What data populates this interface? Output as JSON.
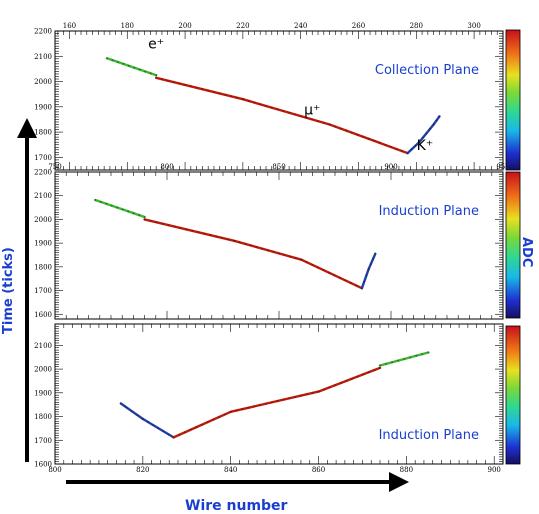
{
  "chart_data": [
    {
      "type": "line",
      "panel": "top",
      "plane_label": "Collection Plane",
      "x_ticks": [
        160,
        180,
        200,
        220,
        240,
        260,
        280,
        300
      ],
      "xlim": [
        155,
        310
      ],
      "y_ticks": [
        1700,
        1800,
        1900,
        2000,
        2100,
        2200
      ],
      "ylim": [
        1650,
        2200
      ],
      "tick_side": "top",
      "annotations": [
        {
          "text": "e⁺",
          "x": 190,
          "y": 2130
        },
        {
          "text": "μ⁺",
          "x": 244,
          "y": 1870
        },
        {
          "text": "K⁺",
          "x": 283,
          "y": 1730
        }
      ],
      "series": [
        {
          "segment": "e+",
          "color": "green",
          "x": [
            173,
            190
          ],
          "y": [
            2092,
            2025
          ]
        },
        {
          "segment": "mu+",
          "color": "red",
          "x": [
            190,
            220,
            250,
            277
          ],
          "y": [
            2015,
            1930,
            1830,
            1717
          ]
        },
        {
          "segment": "K+",
          "color": "blue",
          "x": [
            277,
            281,
            286,
            288
          ],
          "y": [
            1717,
            1760,
            1830,
            1862
          ]
        }
      ]
    },
    {
      "type": "line",
      "panel": "middle",
      "plane_label": "Induction Plane",
      "x_ticks": [
        750,
        800,
        850,
        900,
        950
      ],
      "xlim": [
        750,
        950
      ],
      "y_ticks": [
        1600,
        1700,
        1800,
        1900,
        2000,
        2100,
        2200
      ],
      "ylim": [
        1580,
        2200
      ],
      "tick_side": "top",
      "series": [
        {
          "segment": "e+",
          "color": "green",
          "x": [
            768,
            790
          ],
          "y": [
            2082,
            2010
          ]
        },
        {
          "segment": "mu+",
          "color": "red",
          "x": [
            790,
            830,
            860,
            887
          ],
          "y": [
            2000,
            1910,
            1830,
            1710
          ]
        },
        {
          "segment": "K+",
          "color": "blue",
          "x": [
            887,
            890,
            893
          ],
          "y": [
            1710,
            1790,
            1855
          ]
        }
      ]
    },
    {
      "type": "line",
      "panel": "bottom",
      "plane_label": "Induction Plane",
      "x_ticks": [
        800,
        820,
        840,
        860,
        880,
        900
      ],
      "xlim": [
        800,
        902
      ],
      "y_ticks": [
        1600,
        1700,
        1800,
        1900,
        2000,
        2100
      ],
      "ylim": [
        1600,
        2190
      ],
      "tick_side": "bottom",
      "series": [
        {
          "segment": "K+",
          "color": "blue",
          "x": [
            815,
            820,
            827
          ],
          "y": [
            1855,
            1790,
            1712
          ]
        },
        {
          "segment": "mu+",
          "color": "red",
          "x": [
            827,
            840,
            860,
            874
          ],
          "y": [
            1712,
            1820,
            1905,
            2005
          ]
        },
        {
          "segment": "e+",
          "color": "green",
          "x": [
            874,
            885
          ],
          "y": [
            2015,
            2070
          ]
        }
      ]
    }
  ],
  "axis_titles": {
    "y": "Time (ticks)",
    "x": "Wire number",
    "colorbar": "ADC"
  },
  "colors": {
    "label_blue": "#1a3fd0",
    "track_red": "#c21a0a",
    "track_green": "#3cb832",
    "track_blue": "#1e3fa8"
  }
}
